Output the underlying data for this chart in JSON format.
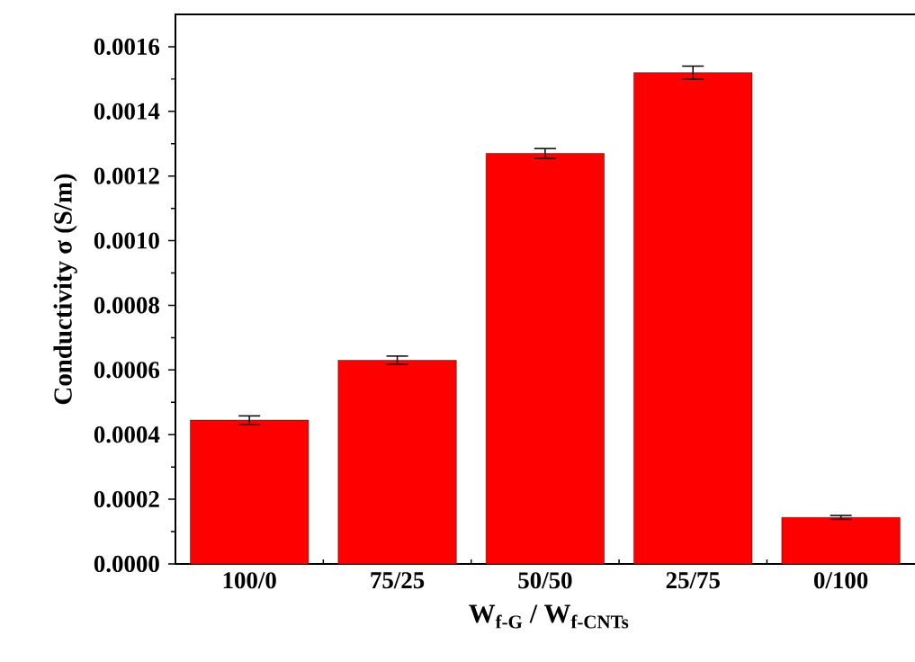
{
  "chart_data": {
    "type": "bar",
    "ylabel": "Conductivity σ (S/m)",
    "xlabel": "W$_{f-G}$ / W$_{f-CNTs}$",
    "categories": [
      "100/0",
      "75/25",
      "50/50",
      "25/75",
      "0/100"
    ],
    "values": [
      0.000445,
      0.00063,
      0.00127,
      0.00152,
      0.000144
    ],
    "errors": [
      1.3e-05,
      1.3e-05,
      1.5e-05,
      2e-05,
      6e-06
    ],
    "color": "#ff0000",
    "ylim": [
      0,
      0.0017
    ],
    "yticks": [
      {
        "value": 0,
        "label": "0.0000"
      },
      {
        "value": 0.0002,
        "label": "0.0002"
      },
      {
        "value": 0.0004,
        "label": "0.0004"
      },
      {
        "value": 0.0006,
        "label": "0.0006"
      },
      {
        "value": 0.0008,
        "label": "0.0008"
      },
      {
        "value": 0.001,
        "label": "0.0010"
      },
      {
        "value": 0.0012,
        "label": "0.0012"
      },
      {
        "value": 0.0014,
        "label": "0.0014"
      },
      {
        "value": 0.0016,
        "label": "0.0016"
      }
    ],
    "grid": false
  }
}
